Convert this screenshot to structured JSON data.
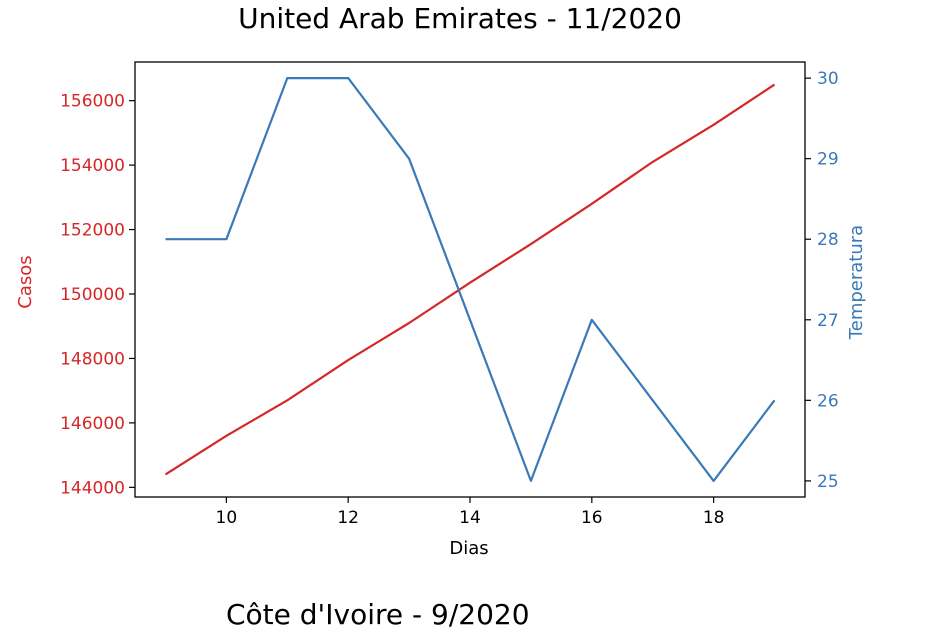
{
  "chart_data": {
    "type": "line",
    "title": "United Arab Emirates - 11/2020",
    "xlabel": "Dias",
    "ylabel_left": "Casos",
    "ylabel_right": "Temperatura",
    "x": [
      9,
      10,
      11,
      12,
      13,
      14,
      15,
      16,
      17,
      18,
      19
    ],
    "xlim": [
      8.5,
      19.5
    ],
    "xticks": [
      10,
      12,
      14,
      16,
      18
    ],
    "ylim_left": [
      143700,
      157200
    ],
    "ylim_right": [
      24.8,
      30.2
    ],
    "yticks_left": [
      144000,
      146000,
      148000,
      150000,
      152000,
      154000,
      156000
    ],
    "yticks_right": [
      25,
      26,
      27,
      28,
      29,
      30
    ],
    "series": [
      {
        "name": "Casos",
        "axis": "left",
        "color": "#d62728",
        "values": [
          144400,
          145600,
          146700,
          147950,
          149100,
          150350,
          151550,
          152800,
          154100,
          155250,
          156500
        ]
      },
      {
        "name": "Temperatura",
        "axis": "right",
        "color": "#3a7ab8",
        "values": [
          28,
          28,
          30,
          30,
          29,
          27,
          25,
          27,
          26,
          25,
          26
        ]
      }
    ],
    "grid": false,
    "left_axis_color": "#d62728",
    "right_axis_color": "#3a7ab8"
  },
  "next_chart_title": "Côte d'Ivoire - 9/2020"
}
